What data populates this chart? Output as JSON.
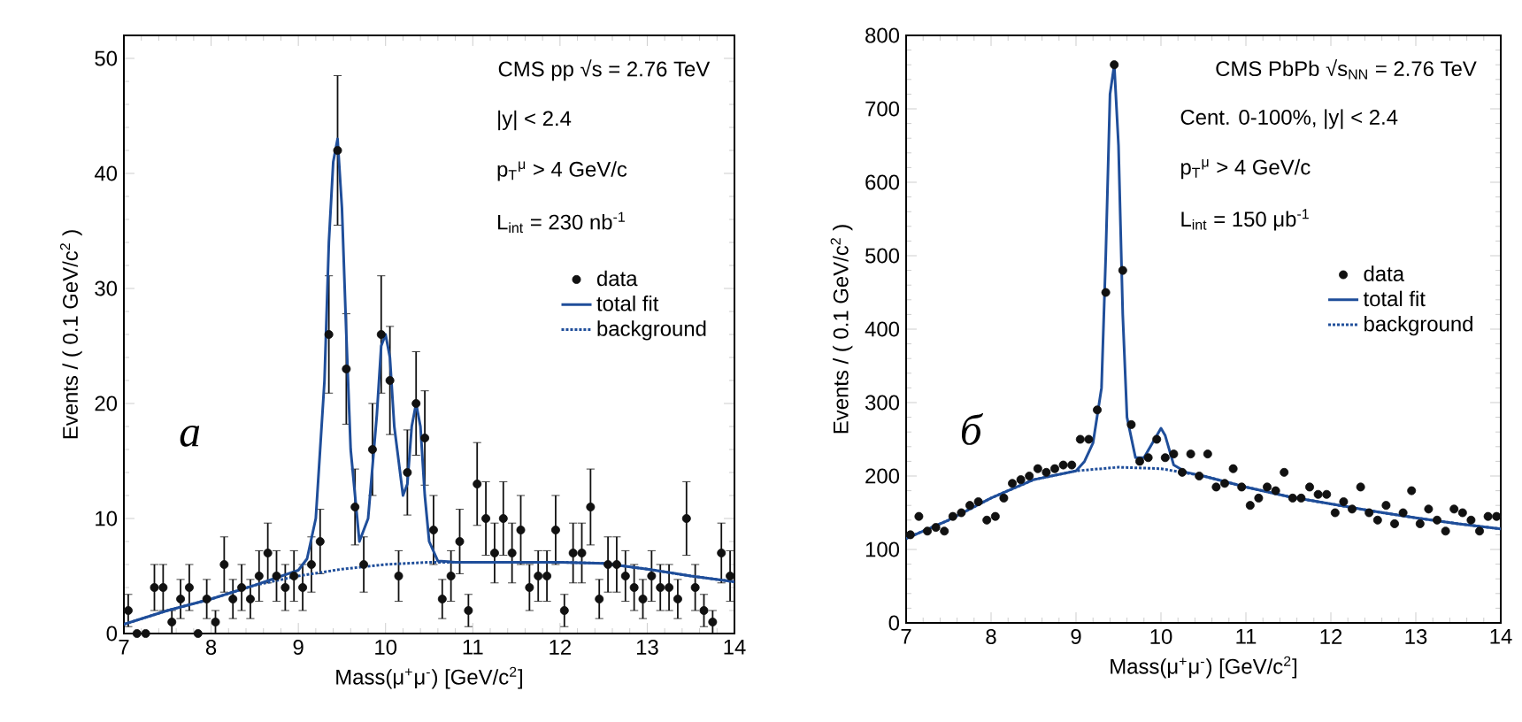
{
  "chart_data": [
    {
      "type": "scatter",
      "xlabel": "Mass(μ$^{+}$μ$^{-}$) [GeV/c$^{2}$]",
      "ylabel": "Events / ( 0.1 GeV/c$^{2}$ )",
      "xlim": [
        7,
        14
      ],
      "ylim": [
        0,
        52
      ],
      "xticks": [
        7,
        8,
        9,
        10,
        11,
        12,
        13,
        14
      ],
      "yticks": [
        0,
        10,
        20,
        30,
        40,
        50
      ],
      "legend": "right",
      "annotations": [
        "CMS pp √s = 2.76 TeV",
        "|y| < 2.4",
        "p$_{T}$$^{μ}$ > 4 GeV/c",
        "L$_{int}$ = 230 nb$^{-1}$",
        "*a*"
      ],
      "series": [
        {
          "name": "data",
          "type": "scatter",
          "marker": "circle",
          "color": "#111111",
          "x": [
            7.05,
            7.15,
            7.25,
            7.35,
            7.45,
            7.55,
            7.65,
            7.75,
            7.85,
            7.95,
            8.05,
            8.15,
            8.25,
            8.35,
            8.45,
            8.55,
            8.65,
            8.75,
            8.85,
            8.95,
            9.05,
            9.15,
            9.25,
            9.35,
            9.45,
            9.55,
            9.65,
            9.75,
            9.85,
            9.95,
            10.05,
            10.15,
            10.25,
            10.35,
            10.45,
            10.55,
            10.65,
            10.75,
            10.85,
            10.95,
            11.05,
            11.15,
            11.25,
            11.35,
            11.45,
            11.55,
            11.65,
            11.75,
            11.85,
            11.95,
            12.05,
            12.15,
            12.25,
            12.35,
            12.45,
            12.55,
            12.65,
            12.75,
            12.85,
            12.95,
            13.05,
            13.15,
            13.25,
            13.35,
            13.45,
            13.55,
            13.65,
            13.75,
            13.85,
            13.95
          ],
          "values": [
            2,
            0,
            0,
            4,
            4,
            1,
            3,
            4,
            0,
            3,
            1,
            6,
            3,
            4,
            3,
            5,
            7,
            5,
            4,
            5,
            4,
            6,
            8,
            26,
            42,
            23,
            11,
            6,
            16,
            26,
            22,
            5,
            14,
            20,
            17,
            9,
            3,
            5,
            8,
            2,
            13,
            10,
            7,
            10,
            7,
            9,
            4,
            5,
            5,
            9,
            2,
            7,
            7,
            11,
            3,
            6,
            6,
            5,
            4,
            3,
            5,
            4,
            4,
            3,
            10,
            4,
            2,
            1,
            7,
            5
          ],
          "errors": [
            1.4,
            null,
            null,
            2,
            2,
            1,
            1.7,
            2,
            null,
            1.7,
            1,
            2.4,
            1.7,
            2,
            1.7,
            2.2,
            2.6,
            2.2,
            2,
            2.2,
            2,
            2.4,
            2.8,
            5.1,
            6.5,
            4.8,
            3.3,
            2.4,
            4,
            5.1,
            4.7,
            2.2,
            3.7,
            4.5,
            4.1,
            3,
            1.7,
            2.2,
            2.8,
            1.4,
            3.6,
            3.2,
            2.6,
            3.2,
            2.6,
            3,
            2,
            2.2,
            2.2,
            3,
            1.4,
            2.6,
            2.6,
            3.3,
            1.7,
            2.4,
            2.4,
            2.2,
            2,
            1.7,
            2.2,
            2,
            2,
            1.7,
            3.2,
            2,
            1.4,
            1,
            2.6,
            2.2
          ]
        },
        {
          "name": "total fit",
          "type": "line",
          "color": "#1f4e9a",
          "x": [
            7,
            7.5,
            8,
            8.5,
            9,
            9.1,
            9.2,
            9.3,
            9.35,
            9.4,
            9.45,
            9.5,
            9.55,
            9.6,
            9.7,
            9.8,
            9.9,
            9.95,
            10,
            10.05,
            10.1,
            10.2,
            10.25,
            10.3,
            10.35,
            10.4,
            10.45,
            10.5,
            10.6,
            10.8,
            11,
            11.5,
            12,
            12.5,
            13,
            13.5,
            14
          ],
          "values": [
            0.8,
            2,
            3,
            4.2,
            5.5,
            6.5,
            10,
            22,
            34,
            41,
            43,
            37,
            26,
            16,
            8,
            10,
            19,
            25,
            26,
            24,
            18,
            12,
            13,
            18,
            20,
            18,
            12,
            8,
            6.3,
            6.2,
            6.2,
            6.2,
            6.2,
            6.1,
            5.6,
            5,
            4.5
          ]
        },
        {
          "name": "background",
          "type": "line",
          "line_style": "dotted",
          "color": "#1f4e9a",
          "x": [
            7,
            7.5,
            8,
            8.5,
            9,
            9.5,
            10,
            10.5,
            11,
            11.5,
            12,
            12.5,
            13,
            13.5,
            14
          ],
          "values": [
            0.8,
            2,
            3,
            4.2,
            5,
            5.6,
            6,
            6.2,
            6.2,
            6.2,
            6.2,
            6.1,
            5.6,
            5,
            4.5
          ]
        }
      ]
    },
    {
      "type": "scatter",
      "xlabel": "Mass(μ$^{+}$μ$^{-}$) [GeV/c$^{2}$]",
      "ylabel": "Events / ( 0.1 GeV/c$^{2}$ )",
      "xlim": [
        7,
        14
      ],
      "ylim": [
        0,
        800
      ],
      "xticks": [
        7,
        8,
        9,
        10,
        11,
        12,
        13,
        14
      ],
      "yticks": [
        0,
        100,
        200,
        300,
        400,
        500,
        600,
        700,
        800
      ],
      "legend": "right",
      "annotations": [
        "CMS PbPb √s$_{NN}$ = 2.76 TeV",
        "Cent. 0-100%, |y| < 2.4",
        "p$_{T}$$^{μ}$ > 4 GeV/c",
        "L$_{int}$ = 150 μb$^{-1}$",
        "*б*"
      ],
      "series": [
        {
          "name": "data",
          "type": "scatter",
          "marker": "circle",
          "color": "#111111",
          "x": [
            7.05,
            7.15,
            7.25,
            7.35,
            7.45,
            7.55,
            7.65,
            7.75,
            7.85,
            7.95,
            8.05,
            8.15,
            8.25,
            8.35,
            8.45,
            8.55,
            8.65,
            8.75,
            8.85,
            8.95,
            9.05,
            9.15,
            9.25,
            9.35,
            9.45,
            9.55,
            9.65,
            9.75,
            9.85,
            9.95,
            10.05,
            10.15,
            10.25,
            10.35,
            10.45,
            10.55,
            10.65,
            10.75,
            10.85,
            10.95,
            11.05,
            11.15,
            11.25,
            11.35,
            11.45,
            11.55,
            11.65,
            11.75,
            11.85,
            11.95,
            12.05,
            12.15,
            12.25,
            12.35,
            12.45,
            12.55,
            12.65,
            12.75,
            12.85,
            12.95,
            13.05,
            13.15,
            13.25,
            13.35,
            13.45,
            13.55,
            13.65,
            13.75,
            13.85,
            13.95
          ],
          "values": [
            120,
            145,
            125,
            130,
            125,
            145,
            150,
            160,
            165,
            140,
            145,
            170,
            190,
            195,
            200,
            210,
            205,
            210,
            215,
            215,
            250,
            250,
            290,
            450,
            760,
            480,
            270,
            220,
            225,
            250,
            225,
            230,
            205,
            230,
            200,
            230,
            185,
            190,
            210,
            185,
            160,
            170,
            185,
            180,
            205,
            170,
            170,
            185,
            175,
            175,
            150,
            165,
            155,
            185,
            150,
            140,
            160,
            135,
            150,
            180,
            135,
            155,
            140,
            125,
            155,
            150,
            140,
            125,
            145,
            145
          ]
        },
        {
          "name": "total fit",
          "type": "line",
          "color": "#1f4e9a",
          "x": [
            7,
            7.5,
            8,
            8.5,
            9,
            9.1,
            9.2,
            9.3,
            9.35,
            9.4,
            9.45,
            9.5,
            9.55,
            9.6,
            9.7,
            9.8,
            9.9,
            10,
            10.05,
            10.15,
            10.3,
            10.5,
            11,
            11.5,
            12,
            12.5,
            13,
            13.5,
            14
          ],
          "values": [
            115,
            140,
            170,
            195,
            207,
            220,
            245,
            320,
            500,
            720,
            760,
            650,
            420,
            280,
            225,
            225,
            245,
            265,
            255,
            215,
            205,
            200,
            185,
            172,
            162,
            152,
            143,
            135,
            128
          ]
        },
        {
          "name": "background",
          "type": "line",
          "line_style": "dotted",
          "color": "#1f4e9a",
          "x": [
            7,
            7.5,
            8,
            8.5,
            9,
            9.5,
            10,
            10.5,
            11,
            11.5,
            12,
            12.5,
            13,
            13.5,
            14
          ],
          "values": [
            115,
            140,
            170,
            195,
            207,
            212,
            210,
            200,
            185,
            172,
            162,
            152,
            143,
            135,
            128
          ]
        }
      ]
    }
  ]
}
